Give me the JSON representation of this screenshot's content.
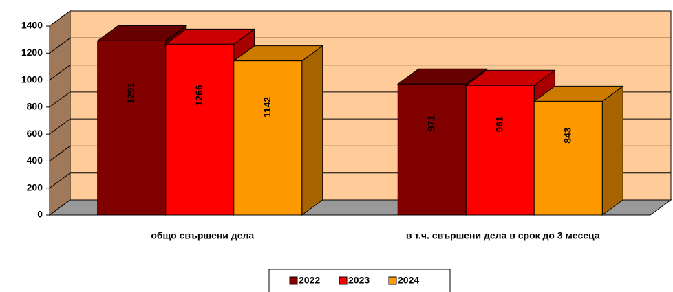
{
  "chart_data": {
    "type": "bar3d",
    "categories": [
      "общо свършени дела",
      "в т.ч. свършени дела в срок до 3 месеца"
    ],
    "series": [
      {
        "name": "2022",
        "color": "#800000",
        "values": [
          1291,
          971
        ]
      },
      {
        "name": "2023",
        "color": "#ff0000",
        "values": [
          1266,
          961
        ]
      },
      {
        "name": "2024",
        "color": "#ff9900",
        "values": [
          1142,
          843
        ]
      }
    ],
    "ylim": [
      0,
      1400
    ],
    "yticks": [
      0,
      200,
      400,
      600,
      800,
      1000,
      1200,
      1400
    ],
    "grid": true,
    "legend": "bottom"
  }
}
